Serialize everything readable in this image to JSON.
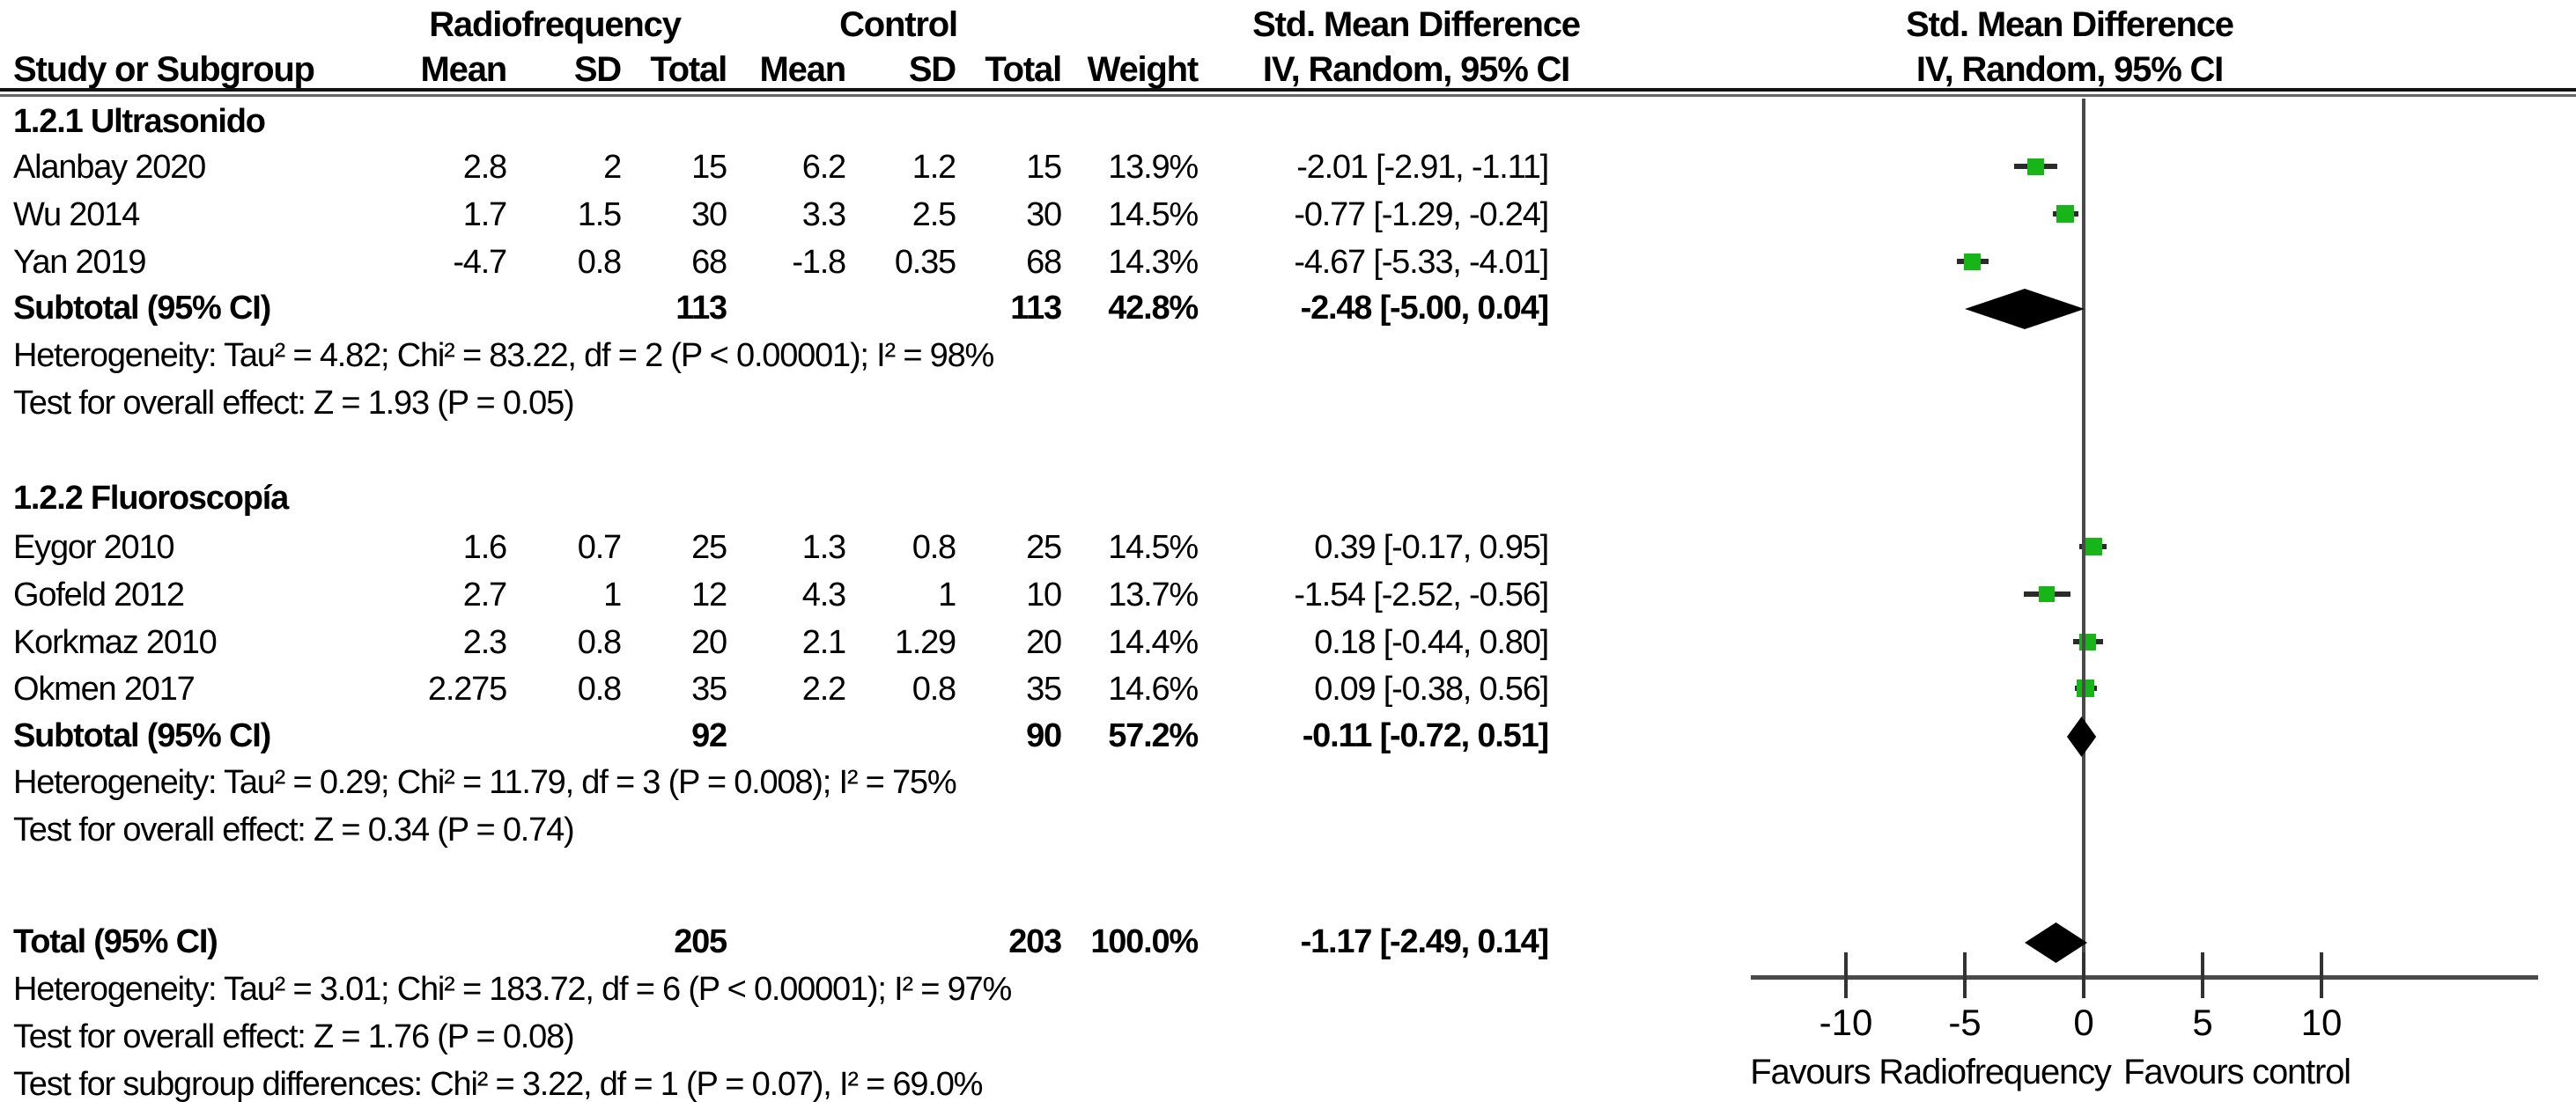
{
  "header": {
    "group1": "Radiofrequency",
    "group2": "Control",
    "smd_left": {
      "line1": "Std. Mean Difference",
      "line2": "IV, Random, 95% CI"
    },
    "smd_right": {
      "line1": "Std. Mean Difference",
      "line2": "IV, Random, 95% CI"
    },
    "cols": [
      "Study or Subgroup",
      "Mean",
      "SD",
      "Total",
      "Mean",
      "SD",
      "Total",
      "Weight"
    ]
  },
  "chart_data": {
    "type": "forest",
    "effect_measure": "Std. Mean Difference",
    "model": "IV, Random, 95% CI",
    "axis": {
      "ticks": [
        -10,
        -5,
        0,
        5,
        10
      ],
      "favours_left": "Favours Radiofrequency",
      "favours_right": "Favours control"
    },
    "subgroups": [
      {
        "label": "1.2.1 Ultrasonido",
        "studies": [
          {
            "name": "Alanbay 2020",
            "mean1": "2.8",
            "sd1": "2",
            "total1": "15",
            "mean2": "6.2",
            "sd2": "1.2",
            "total2": "15",
            "weight": "13.9%",
            "ci_text": "-2.01 [-2.91, -1.11]",
            "est": -2.01,
            "lo": -2.91,
            "hi": -1.11,
            "weight_pct": 13.9
          },
          {
            "name": "Wu 2014",
            "mean1": "1.7",
            "sd1": "1.5",
            "total1": "30",
            "mean2": "3.3",
            "sd2": "2.5",
            "total2": "30",
            "weight": "14.5%",
            "ci_text": "-0.77 [-1.29, -0.24]",
            "est": -0.77,
            "lo": -1.29,
            "hi": -0.24,
            "weight_pct": 14.5
          },
          {
            "name": "Yan 2019",
            "mean1": "-4.7",
            "sd1": "0.8",
            "total1": "68",
            "mean2": "-1.8",
            "sd2": "0.35",
            "total2": "68",
            "weight": "14.3%",
            "ci_text": "-4.67 [-5.33, -4.01]",
            "est": -4.67,
            "lo": -5.33,
            "hi": -4.01,
            "weight_pct": 14.3
          }
        ],
        "subtotal": {
          "label": "Subtotal (95% CI)",
          "total1": "113",
          "total2": "113",
          "weight": "42.8%",
          "ci_text": "-2.48 [-5.00, 0.04]",
          "est": -2.48,
          "lo": -5.0,
          "hi": 0.04
        },
        "heterogeneity": "Heterogeneity: Tau² = 4.82; Chi² = 83.22, df = 2 (P < 0.00001); I² = 98%",
        "overall_effect": "Test for overall effect: Z = 1.93 (P = 0.05)"
      },
      {
        "label": "1.2.2 Fluoroscopía",
        "studies": [
          {
            "name": "Eygor 2010",
            "mean1": "1.6",
            "sd1": "0.7",
            "total1": "25",
            "mean2": "1.3",
            "sd2": "0.8",
            "total2": "25",
            "weight": "14.5%",
            "ci_text": "0.39 [-0.17, 0.95]",
            "est": 0.39,
            "lo": -0.17,
            "hi": 0.95,
            "weight_pct": 14.5
          },
          {
            "name": "Gofeld 2012",
            "mean1": "2.7",
            "sd1": "1",
            "total1": "12",
            "mean2": "4.3",
            "sd2": "1",
            "total2": "10",
            "weight": "13.7%",
            "ci_text": "-1.54 [-2.52, -0.56]",
            "est": -1.54,
            "lo": -2.52,
            "hi": -0.56,
            "weight_pct": 13.7
          },
          {
            "name": "Korkmaz 2010",
            "mean1": "2.3",
            "sd1": "0.8",
            "total1": "20",
            "mean2": "2.1",
            "sd2": "1.29",
            "total2": "20",
            "weight": "14.4%",
            "ci_text": "0.18 [-0.44, 0.80]",
            "est": 0.18,
            "lo": -0.44,
            "hi": 0.8,
            "weight_pct": 14.4
          },
          {
            "name": "Okmen 2017",
            "mean1": "2.275",
            "sd1": "0.8",
            "total1": "35",
            "mean2": "2.2",
            "sd2": "0.8",
            "total2": "35",
            "weight": "14.6%",
            "ci_text": "0.09 [-0.38, 0.56]",
            "est": 0.09,
            "lo": -0.38,
            "hi": 0.56,
            "weight_pct": 14.6
          }
        ],
        "subtotal": {
          "label": "Subtotal (95% CI)",
          "total1": "92",
          "total2": "90",
          "weight": "57.2%",
          "ci_text": "-0.11 [-0.72, 0.51]",
          "est": -0.11,
          "lo": -0.72,
          "hi": 0.51
        },
        "heterogeneity": "Heterogeneity: Tau² = 0.29; Chi² = 11.79, df = 3 (P = 0.008); I² = 75%",
        "overall_effect": "Test for overall effect: Z = 0.34 (P = 0.74)"
      }
    ],
    "total": {
      "label": "Total (95% CI)",
      "total1": "205",
      "total2": "203",
      "weight": "100.0%",
      "ci_text": "-1.17 [-2.49, 0.14]",
      "est": -1.17,
      "lo": -2.49,
      "hi": 0.14
    },
    "total_heterogeneity": "Heterogeneity: Tau² = 3.01; Chi² = 183.72, df = 6 (P < 0.00001); I² = 97%",
    "total_overall_effect": "Test for overall effect: Z = 1.76 (P = 0.08)",
    "subgroup_difference": "Test for subgroup differences: Chi² = 3.22, df = 1 (P = 0.07), I² = 69.0%"
  },
  "colors": {
    "marker_green": "#17b517",
    "diamond_black": "#000000",
    "line_gray": "#4a4a4a"
  }
}
